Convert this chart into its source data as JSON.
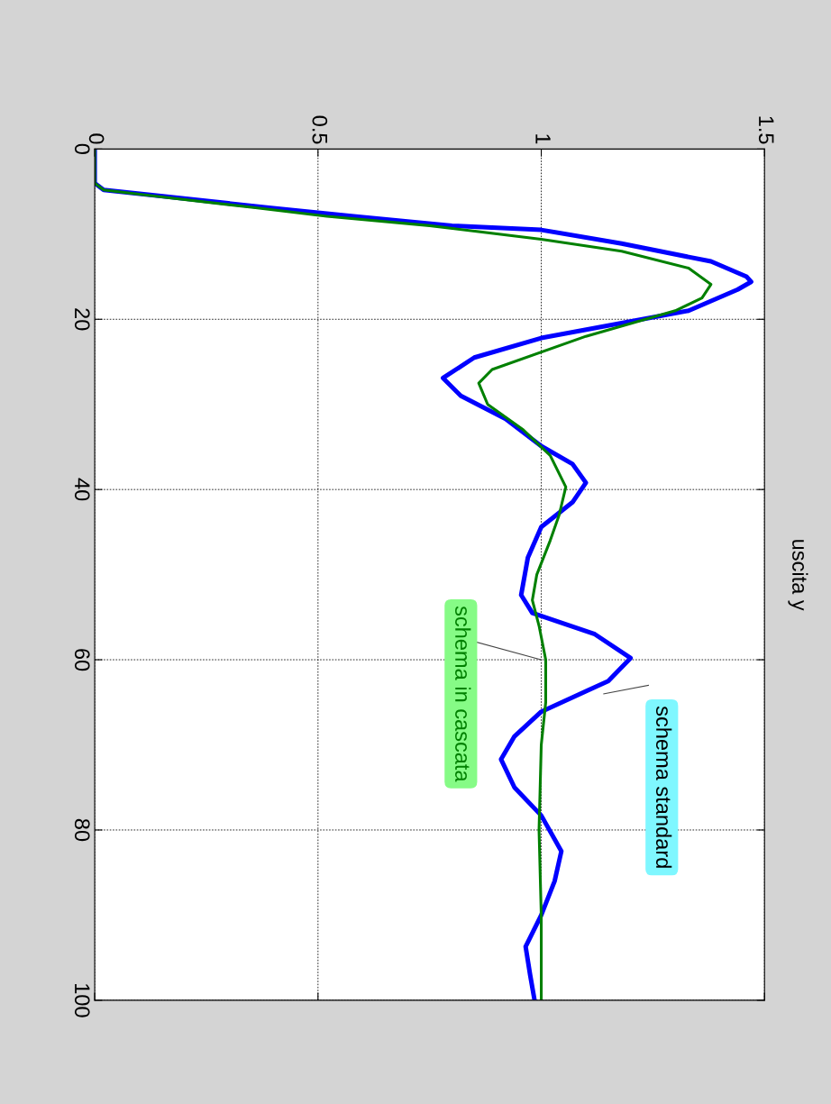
{
  "chart_data": {
    "type": "line",
    "title": "uscita y",
    "xlim": [
      0,
      1.5
    ],
    "xticks": [
      0,
      0.5,
      1,
      1.5
    ],
    "ylim": [
      100,
      0
    ],
    "yticks": [
      0,
      20,
      40,
      60,
      80,
      100
    ],
    "grid": true,
    "legend": false,
    "marker": "none",
    "line_style": "solid",
    "series": [
      {
        "name": "schema standard",
        "color": "#0000ff",
        "values": [
          0,
          4,
          4.8,
          5.8,
          6.9,
          7.9,
          9.0,
          9.5,
          11.1,
          13.2,
          15.0,
          15.6,
          16.5,
          19.0,
          22.2,
          24.5,
          26.9,
          29.0,
          31.7,
          34.9,
          37.0,
          39.2,
          41.5,
          44.4,
          48.0,
          52.4,
          54.5,
          57.0,
          59.8,
          62.5,
          66.1,
          69.0,
          71.7,
          75.0,
          78.3,
          82.5,
          86.0,
          90.0,
          93.7,
          97.0,
          100
        ],
        "x": [
          0,
          0,
          0.02,
          0.2,
          0.39,
          0.58,
          0.8,
          1.0,
          1.18,
          1.38,
          1.46,
          1.47,
          1.44,
          1.33,
          1.0,
          0.85,
          0.78,
          0.82,
          0.92,
          1.0,
          1.07,
          1.1,
          1.07,
          1.0,
          0.97,
          0.955,
          0.98,
          1.12,
          1.2,
          1.15,
          1.0,
          0.94,
          0.91,
          0.94,
          1.0,
          1.045,
          1.03,
          1.0,
          0.965,
          0.975,
          0.985
        ]
      },
      {
        "name": "schema in cascata",
        "color": "#008000",
        "values": [
          0,
          4,
          4.8,
          5.8,
          6.9,
          7.9,
          9.0,
          10.6,
          12.0,
          14.0,
          15.9,
          17.5,
          19.0,
          22.0,
          25.9,
          27.5,
          30.0,
          33.0,
          36.0,
          39.7,
          43.0,
          46.0,
          50.0,
          53.0,
          56.0,
          60.0,
          65.0,
          70.0,
          80.0,
          90.0,
          100
        ],
        "x": [
          0,
          0,
          0.02,
          0.18,
          0.36,
          0.52,
          0.75,
          1.0,
          1.18,
          1.33,
          1.38,
          1.36,
          1.3,
          1.1,
          0.89,
          0.86,
          0.88,
          0.96,
          1.02,
          1.055,
          1.04,
          1.02,
          0.99,
          0.98,
          0.995,
          1.01,
          1.01,
          1.0,
          0.995,
          1.0,
          1.0
        ]
      }
    ]
  }
}
